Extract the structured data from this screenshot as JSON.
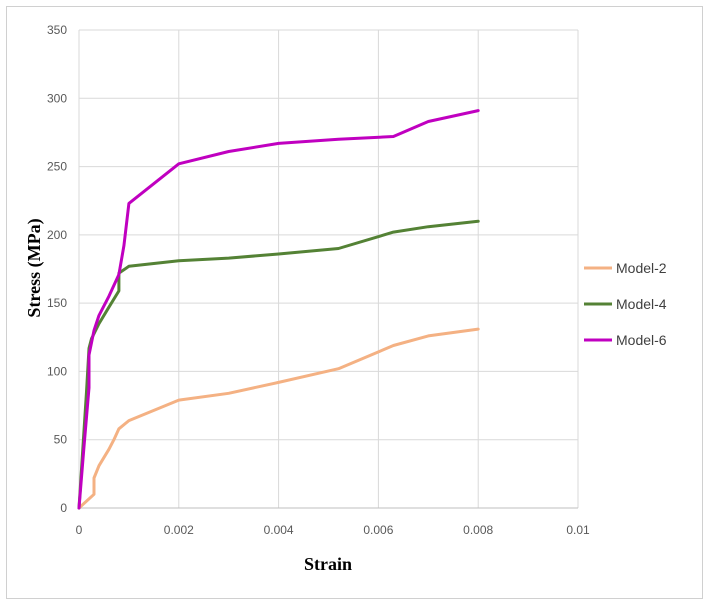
{
  "chart_data": {
    "type": "line",
    "xlabel": "Strain",
    "ylabel": "Stress (MPa)",
    "xlim": [
      0,
      0.01
    ],
    "ylim": [
      0,
      350
    ],
    "x_ticks": [
      "0",
      "0.002",
      "0.004",
      "0.006",
      "0.008",
      "0.01"
    ],
    "y_ticks": [
      "0",
      "50",
      "100",
      "150",
      "200",
      "250",
      "300",
      "350"
    ],
    "grid": true,
    "legend_position": "right",
    "series": [
      {
        "name": "Model-2",
        "color": "#f4b183",
        "x": [
          0,
          0.0003,
          0.0003,
          0.0004,
          0.0006,
          0.0007,
          0.0008,
          0.001,
          0.002,
          0.003,
          0.004,
          0.0052,
          0.0063,
          0.007,
          0.008
        ],
        "y": [
          0,
          10,
          22,
          31,
          43,
          50,
          58,
          64,
          79,
          84,
          92,
          102,
          119,
          126,
          131
        ]
      },
      {
        "name": "Model-4",
        "color": "#548235",
        "x": [
          0,
          0.00015,
          0.0002,
          0.00025,
          0.0004,
          0.0006,
          0.0008,
          0.0008,
          0.001,
          0.002,
          0.003,
          0.004,
          0.0052,
          0.0063,
          0.007,
          0.008
        ],
        "y": [
          0,
          85,
          117,
          124,
          135,
          147,
          159,
          172,
          177,
          181,
          183,
          186,
          190,
          202,
          206,
          210
        ]
      },
      {
        "name": "Model-6",
        "color": "#c000c0",
        "x": [
          0,
          0.0001,
          0.0002,
          0.0002,
          0.0003,
          0.0004,
          0.0006,
          0.0008,
          0.0009,
          0.001,
          0.002,
          0.003,
          0.004,
          0.0052,
          0.0063,
          0.007,
          0.008
        ],
        "y": [
          0,
          45,
          88,
          112,
          130,
          141,
          155,
          171,
          192,
          223,
          252,
          261,
          267,
          270,
          272,
          283,
          291
        ]
      }
    ]
  }
}
